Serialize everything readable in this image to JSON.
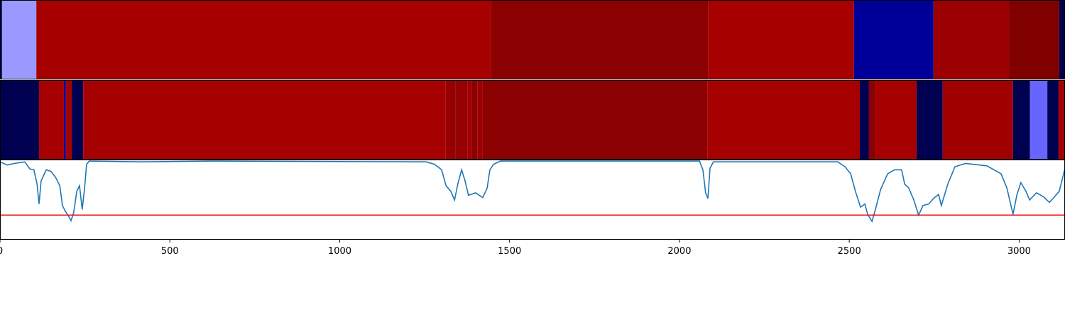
{
  "chart_data": {
    "type": "segments_line",
    "xlim": [
      0,
      3135
    ],
    "xticks": [
      0,
      500,
      1000,
      1500,
      2000,
      2500,
      3000
    ],
    "rows": [
      {
        "segments": [
          {
            "start": 0,
            "end": 6,
            "color": "#000050"
          },
          {
            "start": 6,
            "end": 107,
            "color": "#9999ff"
          },
          {
            "start": 107,
            "end": 1446,
            "color": "#a60000"
          },
          {
            "start": 1446,
            "end": 2084,
            "color": "#8b0000"
          },
          {
            "start": 2084,
            "end": 2514,
            "color": "#a60000"
          },
          {
            "start": 2514,
            "end": 2748,
            "color": "#000099"
          },
          {
            "start": 2748,
            "end": 2970,
            "color": "#9c0000"
          },
          {
            "start": 2970,
            "end": 3118,
            "color": "#800000"
          },
          {
            "start": 3118,
            "end": 3135,
            "color": "#000050"
          }
        ]
      },
      {
        "segments": [
          {
            "start": 0,
            "end": 115,
            "color": "#000050"
          },
          {
            "start": 115,
            "end": 188,
            "color": "#a60000"
          },
          {
            "start": 188,
            "end": 194,
            "color": "#000099"
          },
          {
            "start": 194,
            "end": 211,
            "color": "#a60000"
          },
          {
            "start": 211,
            "end": 245,
            "color": "#000050"
          },
          {
            "start": 245,
            "end": 1312,
            "color": "#a60000"
          },
          {
            "start": 1312,
            "end": 1340,
            "color": "#960000"
          },
          {
            "start": 1340,
            "end": 1345,
            "color": "#8b0000"
          },
          {
            "start": 1345,
            "end": 1377,
            "color": "#960000"
          },
          {
            "start": 1377,
            "end": 1388,
            "color": "#a00000"
          },
          {
            "start": 1388,
            "end": 1406,
            "color": "#8b0000"
          },
          {
            "start": 1406,
            "end": 1421,
            "color": "#9c0000"
          },
          {
            "start": 1421,
            "end": 2082,
            "color": "#8b0000"
          },
          {
            "start": 2082,
            "end": 2531,
            "color": "#a60000"
          },
          {
            "start": 2531,
            "end": 2558,
            "color": "#000050"
          },
          {
            "start": 2558,
            "end": 2575,
            "color": "#8b0000"
          },
          {
            "start": 2575,
            "end": 2698,
            "color": "#a60000"
          },
          {
            "start": 2698,
            "end": 2775,
            "color": "#000050"
          },
          {
            "start": 2775,
            "end": 2982,
            "color": "#a00000"
          },
          {
            "start": 2982,
            "end": 3032,
            "color": "#000050"
          },
          {
            "start": 3032,
            "end": 3083,
            "color": "#6666ff"
          },
          {
            "start": 3083,
            "end": 3116,
            "color": "#000050"
          },
          {
            "start": 3116,
            "end": 3135,
            "color": "#a60000"
          }
        ]
      }
    ],
    "ylim": [
      0,
      1
    ],
    "threshold": 0.31,
    "threshold_color": "#ee1111",
    "series": [
      {
        "color": "#1f77b4",
        "x": [
          0,
          21,
          42,
          73,
          88,
          100,
          109,
          115,
          121,
          136,
          150,
          163,
          176,
          184,
          192,
          203,
          209,
          217,
          226,
          234,
          242,
          249,
          255,
          263,
          418,
          627,
          1254,
          1279,
          1300,
          1313,
          1327,
          1338,
          1348,
          1359,
          1369,
          1379,
          1400,
          1421,
          1434,
          1442,
          1453,
          1473,
          2059,
          2069,
          2077,
          2084,
          2090,
          2100,
          2466,
          2487,
          2504,
          2518,
          2533,
          2546,
          2554,
          2567,
          2577,
          2592,
          2613,
          2633,
          2654,
          2663,
          2675,
          2690,
          2704,
          2717,
          2734,
          2748,
          2763,
          2771,
          2790,
          2811,
          2842,
          2905,
          2926,
          2947,
          2964,
          2976,
          2982,
          2993,
          3005,
          3020,
          3031,
          3051,
          3072,
          3089,
          3104,
          3118,
          3135
        ],
        "values": [
          0.98,
          0.94,
          0.96,
          0.98,
          0.89,
          0.88,
          0.7,
          0.45,
          0.74,
          0.88,
          0.86,
          0.79,
          0.68,
          0.43,
          0.36,
          0.29,
          0.24,
          0.34,
          0.61,
          0.68,
          0.38,
          0.65,
          0.95,
          0.99,
          0.98,
          0.99,
          0.98,
          0.95,
          0.88,
          0.68,
          0.61,
          0.5,
          0.71,
          0.88,
          0.74,
          0.56,
          0.59,
          0.53,
          0.65,
          0.88,
          0.95,
          0.99,
          0.99,
          0.88,
          0.59,
          0.52,
          0.9,
          0.98,
          0.98,
          0.92,
          0.83,
          0.61,
          0.41,
          0.45,
          0.32,
          0.23,
          0.38,
          0.63,
          0.83,
          0.88,
          0.88,
          0.7,
          0.65,
          0.5,
          0.31,
          0.43,
          0.45,
          0.52,
          0.57,
          0.43,
          0.7,
          0.92,
          0.96,
          0.93,
          0.88,
          0.83,
          0.65,
          0.43,
          0.32,
          0.56,
          0.72,
          0.61,
          0.5,
          0.59,
          0.54,
          0.47,
          0.54,
          0.61,
          0.9
        ]
      }
    ]
  }
}
